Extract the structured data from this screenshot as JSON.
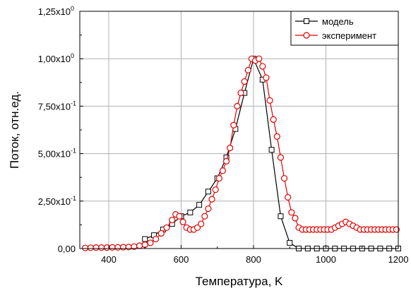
{
  "chart_data": {
    "type": "line",
    "xlabel": "Температура, K",
    "ylabel": "Поток, отн.ед.",
    "xlim": [
      320,
      1200
    ],
    "ylim": [
      0,
      1.25
    ],
    "x_ticks": [
      400,
      600,
      800,
      1000,
      1200
    ],
    "x_tick_labels": [
      "400",
      "600",
      "800",
      "1000",
      "1200"
    ],
    "y_ticks": [
      0,
      0.25,
      0.5,
      0.75,
      1.0,
      1.25
    ],
    "y_tick_labels": [
      {
        "mantissa": "0,00",
        "exp": ""
      },
      {
        "mantissa": "2,50x10",
        "exp": "-1"
      },
      {
        "mantissa": "5,00x10",
        "exp": "-1"
      },
      {
        "mantissa": "7,50x10",
        "exp": "-1"
      },
      {
        "mantissa": "1,00x10",
        "exp": "0"
      },
      {
        "mantissa": "1,25x10",
        "exp": "0"
      }
    ],
    "grid": true,
    "legend_placement": "top-right",
    "series": [
      {
        "name": "модель",
        "color": "#000000",
        "marker": "square",
        "x": [
          500,
          525,
          550,
          575,
          600,
          625,
          650,
          675,
          700,
          725,
          750,
          775,
          800,
          825,
          850,
          875,
          900,
          925,
          950,
          975,
          1000,
          1025,
          1050,
          1075,
          1100,
          1125,
          1150,
          1175,
          1200
        ],
        "y": [
          0.05,
          0.07,
          0.1,
          0.13,
          0.17,
          0.19,
          0.23,
          0.3,
          0.37,
          0.48,
          0.63,
          0.82,
          1.0,
          0.89,
          0.52,
          0.17,
          0.03,
          0.0,
          0.0,
          0.0,
          0.0,
          0.0,
          0.0,
          0.0,
          0.0,
          0.0,
          0.0,
          0.0,
          0.0
        ]
      },
      {
        "name": "эксперимент",
        "color": "#e00000",
        "marker": "circle",
        "x": [
          335,
          350,
          365,
          380,
          395,
          410,
          425,
          440,
          455,
          470,
          485,
          500,
          515,
          530,
          545,
          560,
          575,
          585,
          595,
          605,
          615,
          625,
          635,
          645,
          655,
          665,
          675,
          685,
          695,
          705,
          715,
          725,
          735,
          745,
          755,
          765,
          775,
          785,
          795,
          805,
          815,
          825,
          835,
          845,
          855,
          865,
          875,
          885,
          895,
          905,
          915,
          925,
          935,
          945,
          955,
          965,
          975,
          985,
          995,
          1005,
          1015,
          1025,
          1035,
          1045,
          1055,
          1065,
          1075,
          1085,
          1095,
          1105,
          1115,
          1125,
          1135,
          1145,
          1155,
          1165,
          1175,
          1185,
          1195
        ],
        "y": [
          0.003,
          0.004,
          0.005,
          0.005,
          0.005,
          0.006,
          0.006,
          0.007,
          0.008,
          0.01,
          0.015,
          0.02,
          0.03,
          0.05,
          0.08,
          0.11,
          0.15,
          0.18,
          0.17,
          0.14,
          0.11,
          0.1,
          0.1,
          0.11,
          0.13,
          0.17,
          0.21,
          0.26,
          0.31,
          0.37,
          0.41,
          0.46,
          0.53,
          0.65,
          0.75,
          0.82,
          0.88,
          0.94,
          1.0,
          0.99,
          1.0,
          0.96,
          0.9,
          0.78,
          0.68,
          0.59,
          0.48,
          0.37,
          0.27,
          0.19,
          0.16,
          0.11,
          0.1,
          0.1,
          0.1,
          0.1,
          0.1,
          0.1,
          0.1,
          0.1,
          0.1,
          0.11,
          0.12,
          0.13,
          0.14,
          0.13,
          0.12,
          0.11,
          0.1,
          0.1,
          0.1,
          0.1,
          0.1,
          0.1,
          0.1,
          0.1,
          0.1,
          0.1,
          0.1
        ]
      }
    ]
  }
}
